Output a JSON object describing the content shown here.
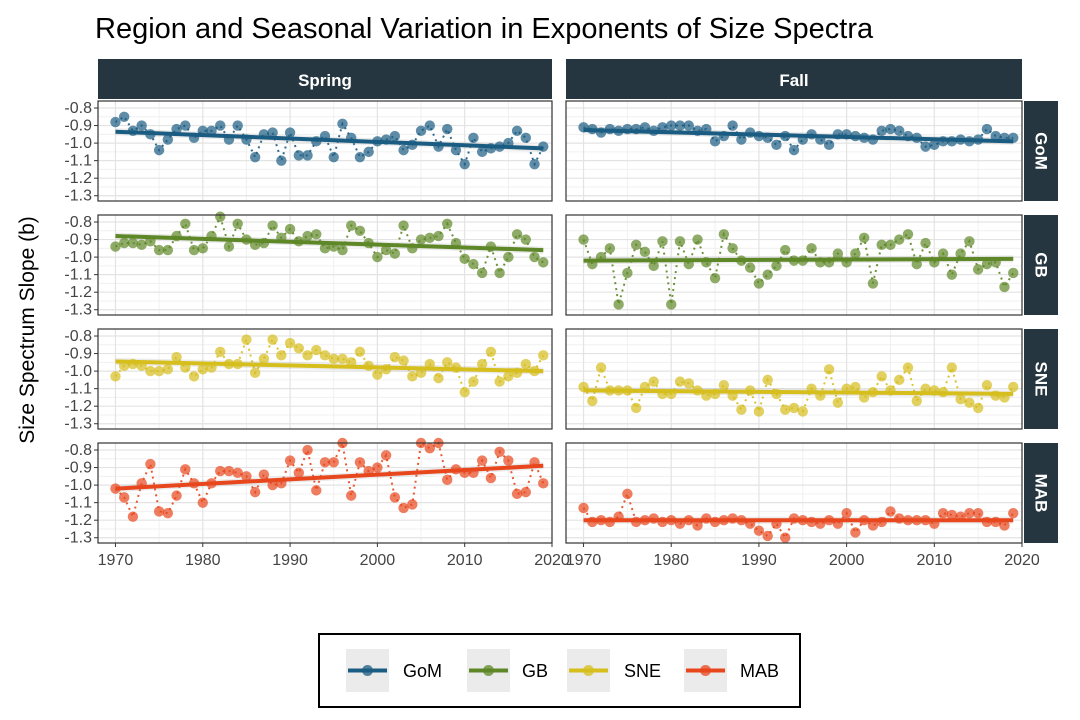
{
  "chart_data": {
    "type": "scatter",
    "title": "Region and Seasonal Variation in Exponents of Size Spectra",
    "xlabel": "",
    "ylabel": "Size Spectrum Slope (b)",
    "xlim": [
      1968,
      2020
    ],
    "ylim": [
      -1.33,
      -0.76
    ],
    "x_ticks": [
      1970,
      1980,
      1990,
      2000,
      2010,
      2020
    ],
    "y_ticks": [
      -0.8,
      -0.9,
      -1.0,
      -1.1,
      -1.2,
      -1.3
    ],
    "x_tick_labels": [
      "1970",
      "1980",
      "1990",
      "2000",
      "2010",
      "2020"
    ],
    "y_tick_labels": [
      "-0.8",
      "-0.9",
      "-1.0",
      "-1.1",
      "-1.2",
      "-1.3"
    ],
    "grid": true,
    "legend_position": "bottom",
    "columns": [
      "Spring",
      "Fall"
    ],
    "rows": [
      "GoM",
      "GB",
      "SNE",
      "MAB"
    ],
    "years_start": 1970,
    "series": [
      {
        "name": "GoM",
        "color": "#1b5c82",
        "spring": {
          "trend": [
            -0.935,
            -1.03
          ],
          "values": [
            -0.88,
            -0.85,
            -0.93,
            -0.9,
            -0.95,
            -1.04,
            -0.98,
            -0.92,
            -0.9,
            -0.97,
            -0.93,
            -0.93,
            -0.9,
            -0.98,
            -0.9,
            -0.98,
            -1.08,
            -0.95,
            -0.94,
            -1.1,
            -0.94,
            -1.07,
            -1.07,
            -0.99,
            -0.96,
            -1.08,
            -0.89,
            -0.97,
            -1.08,
            -1.05,
            -0.99,
            -0.98,
            -0.96,
            -1.04,
            -1.01,
            -0.93,
            -0.9,
            -1.02,
            -0.92,
            -1.04,
            -1.12,
            -0.97,
            -1.05,
            -1.03,
            -1.02,
            -1.0,
            -0.93,
            -0.97,
            -1.12,
            -1.02
          ]
        },
        "fall": {
          "trend": [
            -0.925,
            -0.99
          ],
          "values": [
            -0.91,
            -0.92,
            -0.94,
            -0.92,
            -0.93,
            -0.92,
            -0.92,
            -0.91,
            -0.93,
            -0.91,
            -0.9,
            -0.9,
            -0.9,
            -0.93,
            -0.92,
            -0.99,
            -0.96,
            -0.9,
            -0.98,
            -0.94,
            -0.96,
            -0.97,
            -1.01,
            -0.96,
            -1.04,
            -0.98,
            -0.95,
            -0.98,
            -1.01,
            -0.95,
            -0.95,
            -0.96,
            -0.97,
            -0.98,
            -0.93,
            -0.92,
            -0.93,
            -0.96,
            -0.97,
            -1.02,
            -1.01,
            -0.99,
            -0.99,
            -0.98,
            -0.99,
            -0.98,
            -0.92,
            -0.96,
            -0.97,
            -0.97
          ]
        }
      },
      {
        "name": "GB",
        "color": "#5e8727",
        "spring": {
          "trend": [
            -0.88,
            -0.96
          ],
          "values": [
            -0.94,
            -0.92,
            -0.92,
            -0.93,
            -0.91,
            -0.96,
            -0.96,
            -0.88,
            -0.81,
            -0.96,
            -0.95,
            -0.88,
            -0.77,
            -0.94,
            -0.81,
            -0.9,
            -0.93,
            -0.92,
            -0.82,
            -0.89,
            -0.84,
            -0.91,
            -0.88,
            -0.87,
            -0.95,
            -0.94,
            -0.96,
            -0.82,
            -0.85,
            -0.92,
            -1.0,
            -0.96,
            -0.98,
            -0.82,
            -0.95,
            -0.9,
            -0.89,
            -0.88,
            -0.81,
            -0.92,
            -1.01,
            -1.04,
            -1.09,
            -0.94,
            -1.09,
            -1.0,
            -0.87,
            -0.9,
            -1.0,
            -1.03
          ]
        },
        "fall": {
          "trend": [
            -1.02,
            -1.01
          ],
          "values": [
            -0.9,
            -1.04,
            -1.0,
            -0.95,
            -1.27,
            -1.09,
            -0.93,
            -0.97,
            -1.05,
            -0.91,
            -1.27,
            -0.91,
            -1.04,
            -0.9,
            -1.03,
            -1.12,
            -0.87,
            -0.95,
            -1.02,
            -1.06,
            -1.15,
            -1.1,
            -1.05,
            -0.96,
            -1.02,
            -1.02,
            -0.95,
            -1.03,
            -1.03,
            -0.98,
            -1.03,
            -0.98,
            -0.89,
            -1.15,
            -0.93,
            -0.93,
            -0.9,
            -0.87,
            -1.04,
            -0.92,
            -1.03,
            -0.98,
            -1.1,
            -0.98,
            -0.91,
            -1.07,
            -1.04,
            -1.03,
            -1.17,
            -1.09
          ]
        }
      },
      {
        "name": "SNE",
        "color": "#d6be1c",
        "spring": {
          "trend": [
            -0.945,
            -1.0
          ],
          "values": [
            -1.03,
            -0.97,
            -0.96,
            -0.97,
            -1.0,
            -1.0,
            -0.99,
            -0.92,
            -0.98,
            -1.03,
            -0.99,
            -0.98,
            -0.89,
            -0.96,
            -0.96,
            -0.82,
            -1.01,
            -0.93,
            -0.82,
            -0.91,
            -0.84,
            -0.87,
            -0.91,
            -0.88,
            -0.91,
            -0.93,
            -0.93,
            -0.95,
            -0.89,
            -0.97,
            -1.02,
            -0.99,
            -0.92,
            -0.94,
            -1.03,
            -1.01,
            -0.96,
            -1.04,
            -0.95,
            -0.98,
            -1.12,
            -1.06,
            -0.96,
            -0.89,
            -1.06,
            -1.03,
            -1.01,
            -0.96,
            -1.0,
            -0.91
          ]
        },
        "fall": {
          "trend": [
            -1.11,
            -1.13
          ],
          "values": [
            -1.09,
            -1.17,
            -0.98,
            -1.11,
            -1.11,
            -1.11,
            -1.21,
            -1.09,
            -1.06,
            -1.13,
            -1.13,
            -1.06,
            -1.07,
            -1.11,
            -1.14,
            -1.13,
            -1.08,
            -1.14,
            -1.22,
            -1.11,
            -1.23,
            -1.05,
            -1.13,
            -1.22,
            -1.21,
            -1.23,
            -1.1,
            -1.14,
            -0.99,
            -1.18,
            -1.1,
            -1.09,
            -1.15,
            -1.12,
            -1.03,
            -1.11,
            -1.05,
            -0.98,
            -1.17,
            -1.1,
            -1.11,
            -1.12,
            -0.98,
            -1.16,
            -1.18,
            -1.21,
            -1.08,
            -1.14,
            -1.15,
            -1.09
          ]
        }
      },
      {
        "name": "MAB",
        "color": "#e8461c",
        "spring": {
          "trend": [
            -1.02,
            -0.89
          ],
          "values": [
            -1.02,
            -1.07,
            -1.18,
            -0.99,
            -0.88,
            -1.15,
            -1.16,
            -1.06,
            -0.91,
            -0.99,
            -1.1,
            -0.99,
            -0.92,
            -0.92,
            -0.93,
            -0.95,
            -1.04,
            -0.94,
            -1.0,
            -0.99,
            -0.86,
            -0.93,
            -0.8,
            -1.03,
            -0.87,
            -0.87,
            -0.76,
            -1.06,
            -0.87,
            -0.92,
            -0.9,
            -0.83,
            -1.07,
            -1.13,
            -1.11,
            -0.76,
            -0.79,
            -0.76,
            -0.97,
            -0.91,
            -0.93,
            -0.93,
            -0.86,
            -0.96,
            -0.81,
            -0.86,
            -1.05,
            -1.04,
            -0.87,
            -0.99
          ]
        },
        "fall": {
          "trend": [
            -1.2,
            -1.2
          ],
          "values": [
            -1.13,
            -1.21,
            -1.2,
            -1.21,
            -1.18,
            -1.05,
            -1.21,
            -1.2,
            -1.19,
            -1.21,
            -1.2,
            -1.22,
            -1.2,
            -1.23,
            -1.19,
            -1.21,
            -1.2,
            -1.19,
            -1.2,
            -1.22,
            -1.26,
            -1.29,
            -1.22,
            -1.3,
            -1.19,
            -1.2,
            -1.21,
            -1.22,
            -1.2,
            -1.22,
            -1.16,
            -1.27,
            -1.2,
            -1.23,
            -1.21,
            -1.15,
            -1.19,
            -1.2,
            -1.2,
            -1.2,
            -1.22,
            -1.16,
            -1.17,
            -1.18,
            -1.16,
            -1.16,
            -1.21,
            -1.21,
            -1.23,
            -1.16
          ]
        }
      }
    ]
  },
  "legend": {
    "items": [
      "GoM",
      "GB",
      "SNE",
      "MAB"
    ]
  }
}
